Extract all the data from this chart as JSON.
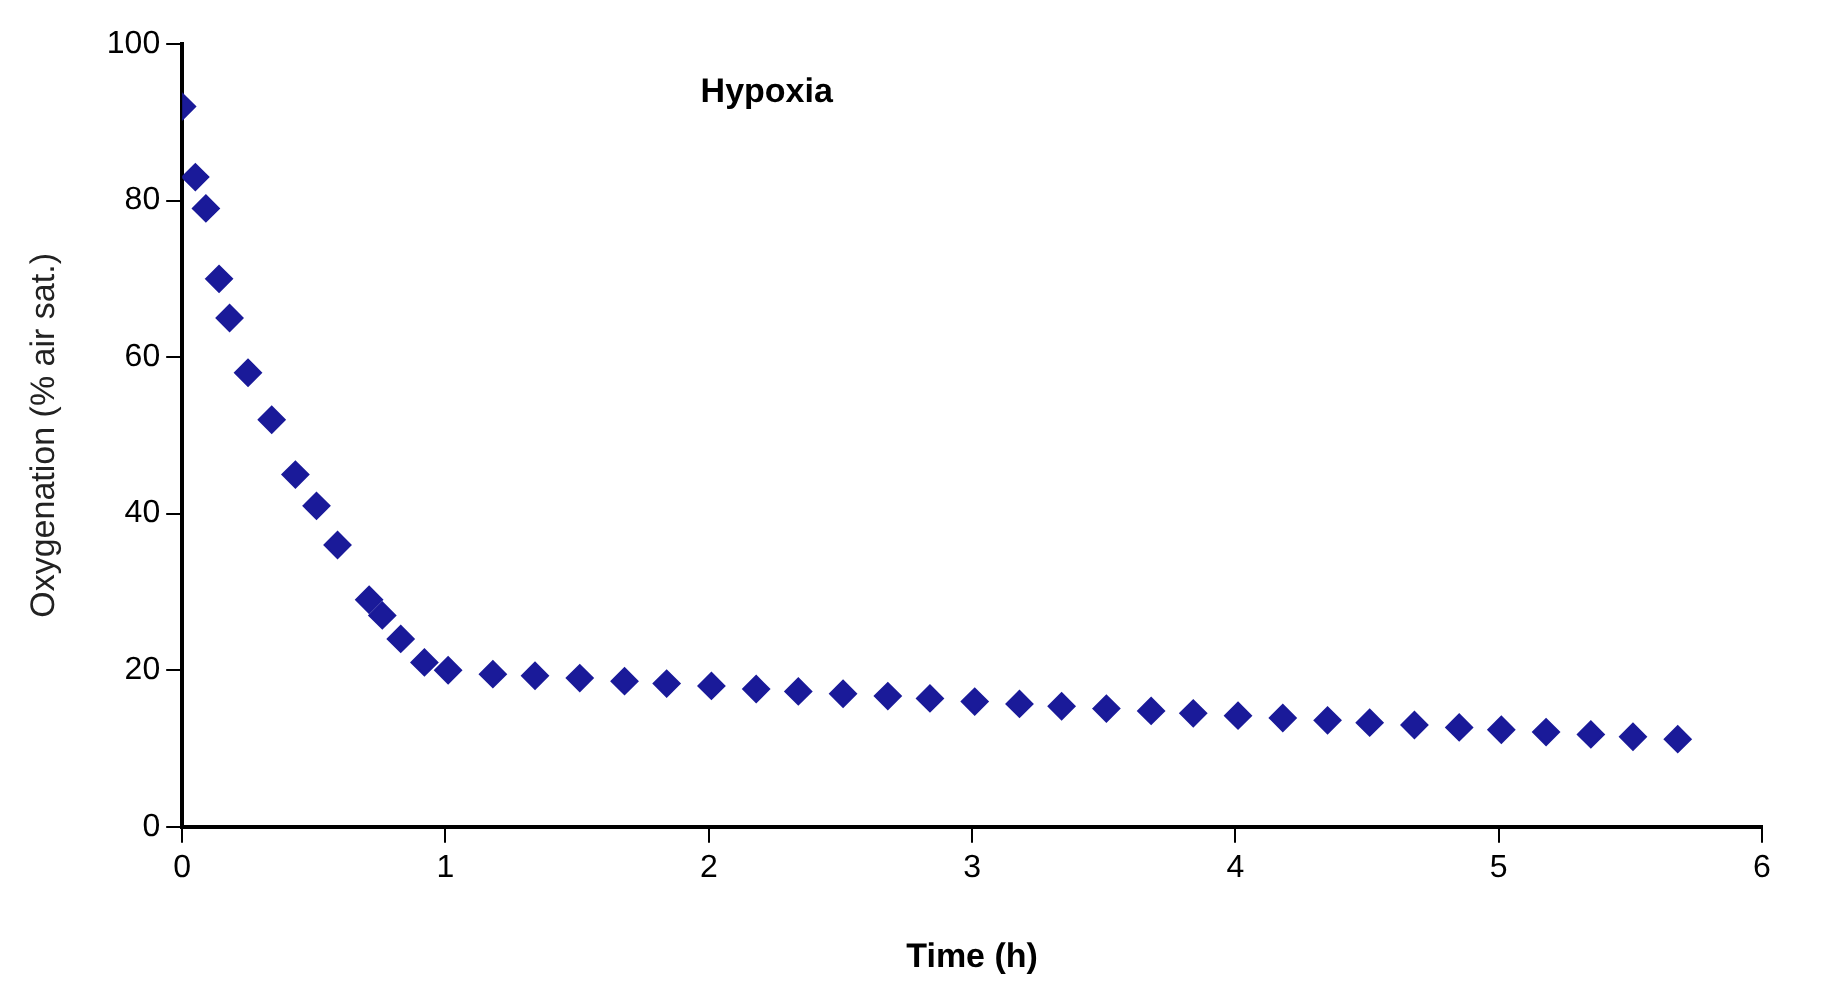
{
  "chart_data": {
    "type": "scatter",
    "title": "Hypoxia",
    "xlabel": "Time (h)",
    "ylabel": "Oxygenation (% air sat.)",
    "x": [
      0,
      0.05,
      0.09,
      0.14,
      0.18,
      0.25,
      0.34,
      0.43,
      0.51,
      0.59,
      0.71,
      0.76,
      0.83,
      0.92,
      1.01,
      1.18,
      1.34,
      1.51,
      1.68,
      1.84,
      2.01,
      2.18,
      2.34,
      2.51,
      2.68,
      2.84,
      3.01,
      3.18,
      3.34,
      3.51,
      3.68,
      3.84,
      4.01,
      4.18,
      4.35,
      4.51,
      4.68,
      4.85,
      5.01,
      5.18,
      5.35,
      5.51,
      5.68
    ],
    "series": [
      {
        "color": "#1a1a99",
        "values": [
          92,
          83,
          79,
          70,
          65,
          58,
          52,
          45,
          41,
          36,
          29,
          27,
          24,
          21,
          20,
          19.5,
          19.3,
          19,
          18.6,
          18.3,
          18,
          17.6,
          17.3,
          17,
          16.7,
          16.4,
          16,
          15.7,
          15.4,
          15.1,
          14.8,
          14.5,
          14.2,
          13.9,
          13.6,
          13.3,
          13,
          12.7,
          12.4,
          12.1,
          11.8,
          11.5,
          11.2
        ]
      }
    ],
    "xlim": [
      0,
      6
    ],
    "xticks": [
      0,
      1,
      2,
      3,
      4,
      5,
      6
    ],
    "ylim": [
      0,
      100
    ],
    "yticks": [
      0,
      20,
      40,
      60,
      80,
      100
    ],
    "grid": false,
    "legend": false,
    "marker": "diamond"
  }
}
